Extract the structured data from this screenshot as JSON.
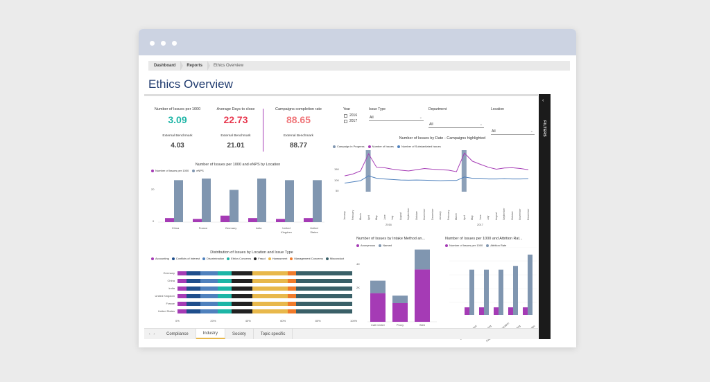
{
  "colors": {
    "teal": "#1db5a6",
    "red": "#e8374e",
    "salmon": "#f0767a",
    "magenta": "#a53bb5",
    "slate": "#8096b0",
    "blue": "#4f81bd",
    "darktext": "#1f3a6e"
  },
  "breadcrumb": [
    "Dashboard",
    "Reports",
    "Ethics Overview"
  ],
  "page_title": "Ethics Overview",
  "kpis": [
    {
      "label": "Number of Issues per 1000",
      "value": "3.09",
      "bench_label": "External Benchmark",
      "bench_value": "4.03"
    },
    {
      "label": "Average Days to close",
      "value": "22.73",
      "bench_label": "External Benchmark",
      "bench_value": "21.01"
    },
    {
      "label": "Campaigns completion rate",
      "value": "88.65",
      "bench_label": "External Benchmark",
      "bench_value": "88.77"
    }
  ],
  "slicers": {
    "year_label": "Year",
    "years": [
      "2016",
      "2017"
    ],
    "issue_type_label": "Issue Type",
    "department_label": "Department",
    "location_label": "Location",
    "all": "All"
  },
  "filters_label": "FILTERS",
  "filters_chevron": "‹",
  "tab_nav": [
    "‹",
    "›"
  ],
  "tabs": [
    "Compliance",
    "Industry",
    "Society",
    "Topic specific"
  ],
  "active_tab": "Industry",
  "charts": {
    "location": {
      "title": "Number of Issues per 1000 and eNPS by Location",
      "legend": [
        "Number of Issues per 1000",
        "eNPS"
      ],
      "y_ticks": [
        "20",
        "0"
      ]
    },
    "date": {
      "title": "Number of Issues by Date - Campaigns highlighted",
      "legend": [
        "Campaign in Progress",
        "Number of Issues",
        "Number of Substantiated Issues"
      ],
      "y_ticks": [
        "150",
        "100",
        "50"
      ],
      "months": [
        "January",
        "February",
        "March",
        "April",
        "May",
        "June",
        "July",
        "August",
        "September",
        "October",
        "November",
        "December"
      ],
      "years": [
        "2016",
        "2017"
      ]
    },
    "distribution": {
      "title": "Distribution of Issues by Location and Issue Type",
      "legend": [
        "Accounting",
        "Conflicts of Interest",
        "Discrimination",
        "Ethics Concerns",
        "Fraud",
        "Harassment",
        "Management Concerns",
        "Misconduct"
      ],
      "x_ticks": [
        "0%",
        "20%",
        "40%",
        "60%",
        "80%",
        "100%"
      ]
    },
    "intake": {
      "title": "Number of Issues by Intake Method an...",
      "legend": [
        "Anonymous",
        "Named"
      ],
      "y_ticks": [
        "4K",
        "2K",
        "0K"
      ]
    },
    "attrition": {
      "title": "Number of Issues per 1000 and Attrition Rat...",
      "legend": [
        "Number of Issues per 1000",
        "Attrition Rate"
      ]
    }
  },
  "chart_data": [
    {
      "type": "bar",
      "title": "Number of Issues per 1000 and eNPS by Location",
      "categories": [
        "China",
        "France",
        "Germany",
        "India",
        "United Kingdom",
        "United States"
      ],
      "series": [
        {
          "name": "Number of Issues per 1000",
          "values": [
            2.5,
            2.0,
            4.0,
            2.5,
            2.0,
            2.5
          ]
        },
        {
          "name": "eNPS",
          "values": [
            26,
            27,
            20,
            27,
            26,
            26
          ]
        }
      ],
      "ylim": [
        0,
        30
      ]
    },
    {
      "type": "line",
      "title": "Number of Issues by Date - Campaigns highlighted",
      "x": [
        "Jan 2016",
        "Feb 2016",
        "Mar 2016",
        "Apr 2016",
        "May 2016",
        "Jun 2016",
        "Jul 2016",
        "Aug 2016",
        "Sep 2016",
        "Oct 2016",
        "Nov 2016",
        "Dec 2016",
        "Jan 2017",
        "Feb 2017",
        "Mar 2017",
        "Apr 2017",
        "May 2017",
        "Jun 2017",
        "Jul 2017",
        "Aug 2017",
        "Sep 2017",
        "Oct 2017",
        "Nov 2017",
        "Dec 2017"
      ],
      "series": [
        {
          "name": "Number of Issues",
          "values": [
            65,
            72,
            85,
            155,
            100,
            98,
            92,
            88,
            85,
            90,
            95,
            92,
            90,
            88,
            82,
            158,
            125,
            112,
            100,
            92,
            97,
            98,
            95,
            90
          ]
        },
        {
          "name": "Number of Substantiated Issues",
          "values": [
            35,
            40,
            45,
            65,
            55,
            52,
            50,
            48,
            47,
            48,
            47,
            46,
            45,
            46,
            46,
            60,
            55,
            55,
            52,
            52,
            53,
            52,
            52,
            53
          ]
        }
      ],
      "highlighted": [
        "Apr 2016",
        "Apr 2017"
      ],
      "ylim": [
        0,
        170
      ]
    },
    {
      "type": "bar",
      "title": "Distribution of Issues by Location and Issue Type",
      "categories": [
        "Germany",
        "China",
        "India",
        "United Kingdom",
        "France",
        "United States"
      ],
      "series": [
        {
          "name": "Accounting",
          "values": [
            5,
            5,
            5,
            5,
            5,
            5
          ]
        },
        {
          "name": "Conflicts of Interest",
          "values": [
            8,
            8,
            8,
            8,
            8,
            8
          ]
        },
        {
          "name": "Discrimination",
          "values": [
            10,
            10,
            10,
            10,
            10,
            10
          ]
        },
        {
          "name": "Ethics Concerns",
          "values": [
            8,
            8,
            8,
            8,
            8,
            8
          ]
        },
        {
          "name": "Fraud",
          "values": [
            12,
            12,
            12,
            12,
            12,
            12
          ]
        },
        {
          "name": "Harassment",
          "values": [
            20,
            20,
            20,
            20,
            20,
            20
          ]
        },
        {
          "name": "Management Concerns",
          "values": [
            5,
            5,
            5,
            5,
            5,
            5
          ]
        },
        {
          "name": "Misconduct",
          "values": [
            32,
            32,
            32,
            32,
            32,
            32
          ]
        }
      ],
      "xlim": [
        0,
        100
      ]
    },
    {
      "type": "bar",
      "title": "Number of Issues by Intake Method an...",
      "categories": [
        "Call Center",
        "Proxy",
        "Web"
      ],
      "series": [
        {
          "name": "Anonymous",
          "values": [
            2300,
            1500,
            4200
          ]
        },
        {
          "name": "Named",
          "values": [
            1000,
            600,
            1600
          ]
        }
      ],
      "ylim": [
        0,
        6000
      ]
    },
    {
      "type": "bar",
      "title": "Number of Issues per 1000 and Attrition Rat...",
      "categories": [
        "Customer Support",
        "Engineering",
        "Finance & Administration",
        "Marketing",
        "Sales"
      ],
      "series": [
        {
          "name": "Number of Issues per 1000",
          "values": [
            2,
            2,
            2,
            2,
            2
          ]
        },
        {
          "name": "Attrition Rate",
          "values": [
            12,
            12,
            12,
            13,
            16
          ]
        }
      ]
    }
  ]
}
